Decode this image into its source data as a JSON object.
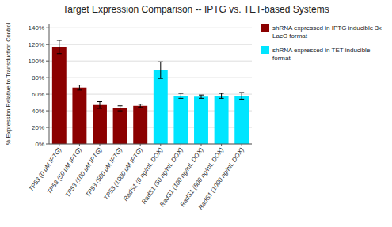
{
  "chart_data": {
    "type": "bar",
    "title": "Target Expression Comparison -- IPTG vs. TET-based Systems",
    "ylabel": "% Expression Relative to Transduction Control",
    "categories": [
      "TP53 (0 μM IPTG)",
      "TP53 (50 μM IPTG)",
      "TP53 (100 μM IPTG)",
      "TP53 (500 μM IPTG)",
      "TP53 (1000 μM IPTG)",
      "RadS1 (0 ng/mL DOX)",
      "RadS1 (50 ng/mL DOX)",
      "RadS1 (100 ng/mL DOX)",
      "RadS1 (500 ng/mL DOX)",
      "RadS1 (1000 ng/mL DOX)"
    ],
    "series": [
      {
        "name": "shRNA expressed in IPTG inducible 3x LacO format",
        "color": "#8B0000",
        "values": [
          117,
          68,
          47,
          43,
          46,
          null,
          null,
          null,
          null,
          null
        ],
        "errors": [
          8,
          3,
          4,
          3,
          2,
          null,
          null,
          null,
          null,
          null
        ]
      },
      {
        "name": "shRNA expressed in TET inducible format",
        "color": "#00E5FF",
        "values": [
          null,
          null,
          null,
          null,
          null,
          89,
          58,
          57,
          58,
          58
        ],
        "errors": [
          null,
          null,
          null,
          null,
          null,
          10,
          3,
          2,
          3,
          4
        ]
      }
    ],
    "ylim": [
      0,
      145
    ],
    "yticks": [
      {
        "value": 0,
        "label": "0%"
      },
      {
        "value": 20,
        "label": "20%"
      },
      {
        "value": 40,
        "label": "40%"
      },
      {
        "value": 60,
        "label": "60%"
      },
      {
        "value": 80,
        "label": "80%"
      },
      {
        "value": 100,
        "label": "100%"
      },
      {
        "value": 120,
        "label": "120%"
      },
      {
        "value": 140,
        "label": "140%"
      }
    ],
    "grid": true,
    "legend": "right"
  }
}
